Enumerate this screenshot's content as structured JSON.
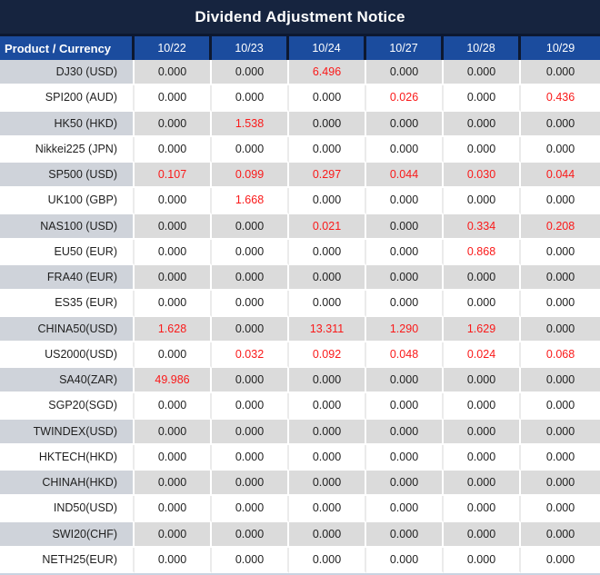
{
  "title": "Dividend Adjustment Notice",
  "columns": [
    "Product / Currency",
    "10/22",
    "10/23",
    "10/24",
    "10/27",
    "10/28",
    "10/29"
  ],
  "colors": {
    "title_bg": "#16243f",
    "header_bg": "#1b4c9e",
    "header_divider": "#0d1830",
    "stripe_row_bg": "#dbdbdb",
    "stripe_product_bg": "#cfd3da",
    "negative_highlight_red": "#fa1919",
    "body_text": "#1f1f1f"
  },
  "rows": [
    {
      "product": "DJ30 (USD)",
      "values": [
        {
          "value": "0.000",
          "red": false
        },
        {
          "value": "0.000",
          "red": false
        },
        {
          "value": "6.496",
          "red": true
        },
        {
          "value": "0.000",
          "red": false
        },
        {
          "value": "0.000",
          "red": false
        },
        {
          "value": "0.000",
          "red": false
        }
      ]
    },
    {
      "product": "SPI200 (AUD)",
      "values": [
        {
          "value": "0.000",
          "red": false
        },
        {
          "value": "0.000",
          "red": false
        },
        {
          "value": "0.000",
          "red": false
        },
        {
          "value": "0.026",
          "red": true
        },
        {
          "value": "0.000",
          "red": false
        },
        {
          "value": "0.436",
          "red": true
        }
      ]
    },
    {
      "product": "HK50 (HKD)",
      "values": [
        {
          "value": "0.000",
          "red": false
        },
        {
          "value": "1.538",
          "red": true
        },
        {
          "value": "0.000",
          "red": false
        },
        {
          "value": "0.000",
          "red": false
        },
        {
          "value": "0.000",
          "red": false
        },
        {
          "value": "0.000",
          "red": false
        }
      ]
    },
    {
      "product": "Nikkei225 (JPN)",
      "values": [
        {
          "value": "0.000",
          "red": false
        },
        {
          "value": "0.000",
          "red": false
        },
        {
          "value": "0.000",
          "red": false
        },
        {
          "value": "0.000",
          "red": false
        },
        {
          "value": "0.000",
          "red": false
        },
        {
          "value": "0.000",
          "red": false
        }
      ]
    },
    {
      "product": "SP500 (USD)",
      "values": [
        {
          "value": "0.107",
          "red": true
        },
        {
          "value": "0.099",
          "red": true
        },
        {
          "value": "0.297",
          "red": true
        },
        {
          "value": "0.044",
          "red": true
        },
        {
          "value": "0.030",
          "red": true
        },
        {
          "value": "0.044",
          "red": true
        }
      ]
    },
    {
      "product": "UK100 (GBP)",
      "values": [
        {
          "value": "0.000",
          "red": false
        },
        {
          "value": "1.668",
          "red": true
        },
        {
          "value": "0.000",
          "red": false
        },
        {
          "value": "0.000",
          "red": false
        },
        {
          "value": "0.000",
          "red": false
        },
        {
          "value": "0.000",
          "red": false
        }
      ]
    },
    {
      "product": "NAS100 (USD)",
      "values": [
        {
          "value": "0.000",
          "red": false
        },
        {
          "value": "0.000",
          "red": false
        },
        {
          "value": "0.021",
          "red": true
        },
        {
          "value": "0.000",
          "red": false
        },
        {
          "value": "0.334",
          "red": true
        },
        {
          "value": "0.208",
          "red": true
        }
      ]
    },
    {
      "product": "EU50 (EUR)",
      "values": [
        {
          "value": "0.000",
          "red": false
        },
        {
          "value": "0.000",
          "red": false
        },
        {
          "value": "0.000",
          "red": false
        },
        {
          "value": "0.000",
          "red": false
        },
        {
          "value": "0.868",
          "red": true
        },
        {
          "value": "0.000",
          "red": false
        }
      ]
    },
    {
      "product": "FRA40 (EUR)",
      "values": [
        {
          "value": "0.000",
          "red": false
        },
        {
          "value": "0.000",
          "red": false
        },
        {
          "value": "0.000",
          "red": false
        },
        {
          "value": "0.000",
          "red": false
        },
        {
          "value": "0.000",
          "red": false
        },
        {
          "value": "0.000",
          "red": false
        }
      ]
    },
    {
      "product": "ES35 (EUR)",
      "values": [
        {
          "value": "0.000",
          "red": false
        },
        {
          "value": "0.000",
          "red": false
        },
        {
          "value": "0.000",
          "red": false
        },
        {
          "value": "0.000",
          "red": false
        },
        {
          "value": "0.000",
          "red": false
        },
        {
          "value": "0.000",
          "red": false
        }
      ]
    },
    {
      "product": "CHINA50(USD)",
      "values": [
        {
          "value": "1.628",
          "red": true
        },
        {
          "value": "0.000",
          "red": false
        },
        {
          "value": "13.311",
          "red": true
        },
        {
          "value": "1.290",
          "red": true
        },
        {
          "value": "1.629",
          "red": true
        },
        {
          "value": "0.000",
          "red": false
        }
      ]
    },
    {
      "product": "US2000(USD)",
      "values": [
        {
          "value": "0.000",
          "red": false
        },
        {
          "value": "0.032",
          "red": true
        },
        {
          "value": "0.092",
          "red": true
        },
        {
          "value": "0.048",
          "red": true
        },
        {
          "value": "0.024",
          "red": true
        },
        {
          "value": "0.068",
          "red": true
        }
      ]
    },
    {
      "product": "SA40(ZAR)",
      "values": [
        {
          "value": "49.986",
          "red": true
        },
        {
          "value": "0.000",
          "red": false
        },
        {
          "value": "0.000",
          "red": false
        },
        {
          "value": "0.000",
          "red": false
        },
        {
          "value": "0.000",
          "red": false
        },
        {
          "value": "0.000",
          "red": false
        }
      ]
    },
    {
      "product": "SGP20(SGD)",
      "values": [
        {
          "value": "0.000",
          "red": false
        },
        {
          "value": "0.000",
          "red": false
        },
        {
          "value": "0.000",
          "red": false
        },
        {
          "value": "0.000",
          "red": false
        },
        {
          "value": "0.000",
          "red": false
        },
        {
          "value": "0.000",
          "red": false
        }
      ]
    },
    {
      "product": "TWINDEX(USD)",
      "values": [
        {
          "value": "0.000",
          "red": false
        },
        {
          "value": "0.000",
          "red": false
        },
        {
          "value": "0.000",
          "red": false
        },
        {
          "value": "0.000",
          "red": false
        },
        {
          "value": "0.000",
          "red": false
        },
        {
          "value": "0.000",
          "red": false
        }
      ]
    },
    {
      "product": "HKTECH(HKD)",
      "values": [
        {
          "value": "0.000",
          "red": false
        },
        {
          "value": "0.000",
          "red": false
        },
        {
          "value": "0.000",
          "red": false
        },
        {
          "value": "0.000",
          "red": false
        },
        {
          "value": "0.000",
          "red": false
        },
        {
          "value": "0.000",
          "red": false
        }
      ]
    },
    {
      "product": "CHINAH(HKD)",
      "values": [
        {
          "value": "0.000",
          "red": false
        },
        {
          "value": "0.000",
          "red": false
        },
        {
          "value": "0.000",
          "red": false
        },
        {
          "value": "0.000",
          "red": false
        },
        {
          "value": "0.000",
          "red": false
        },
        {
          "value": "0.000",
          "red": false
        }
      ]
    },
    {
      "product": "IND50(USD)",
      "values": [
        {
          "value": "0.000",
          "red": false
        },
        {
          "value": "0.000",
          "red": false
        },
        {
          "value": "0.000",
          "red": false
        },
        {
          "value": "0.000",
          "red": false
        },
        {
          "value": "0.000",
          "red": false
        },
        {
          "value": "0.000",
          "red": false
        }
      ]
    },
    {
      "product": "SWI20(CHF)",
      "values": [
        {
          "value": "0.000",
          "red": false
        },
        {
          "value": "0.000",
          "red": false
        },
        {
          "value": "0.000",
          "red": false
        },
        {
          "value": "0.000",
          "red": false
        },
        {
          "value": "0.000",
          "red": false
        },
        {
          "value": "0.000",
          "red": false
        }
      ]
    },
    {
      "product": "NETH25(EUR)",
      "values": [
        {
          "value": "0.000",
          "red": false
        },
        {
          "value": "0.000",
          "red": false
        },
        {
          "value": "0.000",
          "red": false
        },
        {
          "value": "0.000",
          "red": false
        },
        {
          "value": "0.000",
          "red": false
        },
        {
          "value": "0.000",
          "red": false
        }
      ]
    }
  ]
}
